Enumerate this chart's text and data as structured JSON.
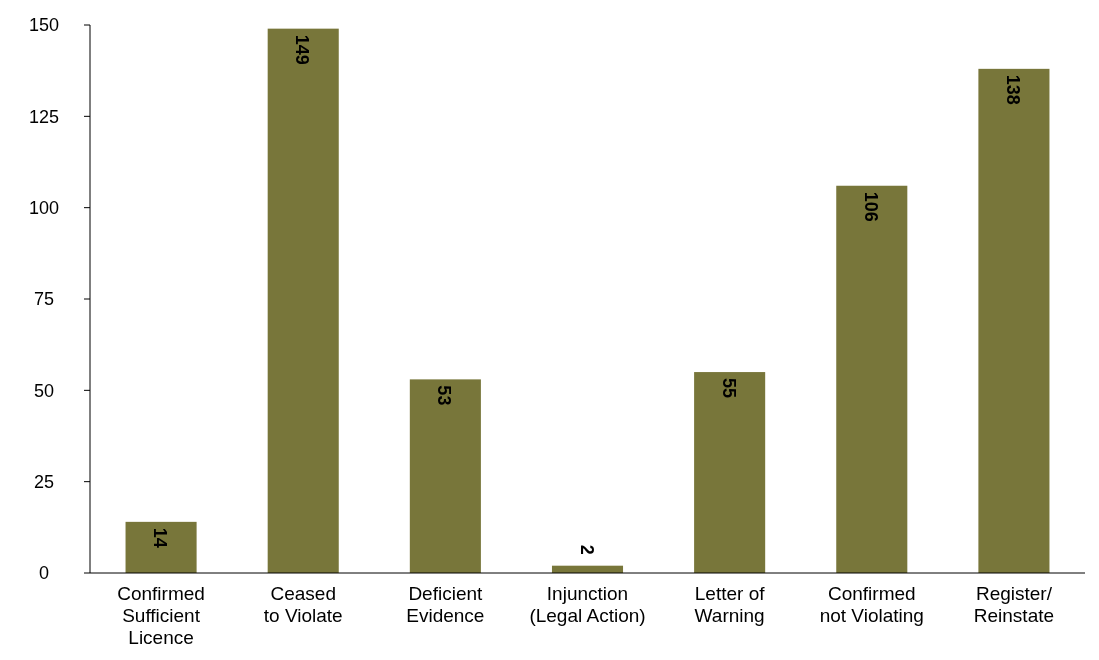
{
  "chart_data": {
    "type": "bar",
    "categories": [
      "Confirmed\nSufficient\nLicence",
      "Ceased\nto Violate",
      "Deficient\nEvidence",
      "Injunction\n(Legal Action)",
      "Letter of\nWarning",
      "Confirmed\nnot Violating",
      "Register/\nReinstate"
    ],
    "values": [
      14,
      149,
      53,
      2,
      55,
      106,
      138
    ],
    "color": "#78763a",
    "ylim": [
      0,
      150
    ],
    "yticks": [
      0,
      25,
      50,
      75,
      100,
      125,
      150
    ],
    "data_labels": true
  }
}
